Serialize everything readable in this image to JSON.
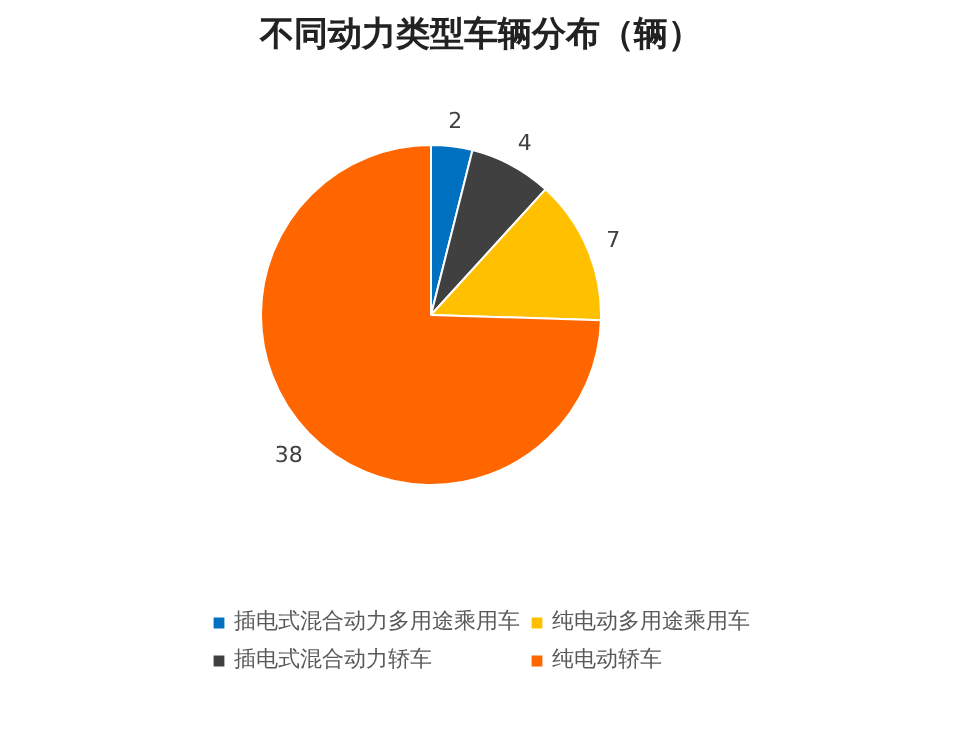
{
  "chart_data": {
    "type": "pie",
    "title": "不同动力类型车辆分布（辆）",
    "categories": [
      "插电式混合动力多用途乘用车",
      "插电式混合动力轿车",
      "纯电动多用途乘用车",
      "纯电动轿车"
    ],
    "values": [
      2,
      4,
      7,
      38
    ],
    "colors": [
      "#0070c0",
      "#404040",
      "#ffc000",
      "#ff6600"
    ],
    "data_labels": true,
    "legend": "bottom"
  }
}
